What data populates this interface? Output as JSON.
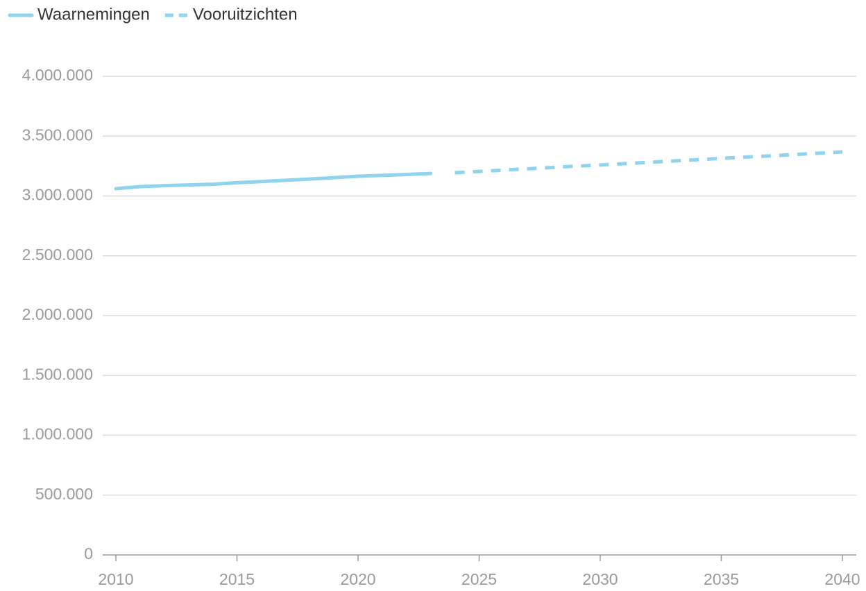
{
  "chart_data": {
    "type": "line",
    "series": [
      {
        "name": "Waarnemingen",
        "color": "#8fd3ee",
        "style": "solid",
        "x": [
          2010,
          2011,
          2012,
          2013,
          2014,
          2015,
          2016,
          2017,
          2018,
          2019,
          2020,
          2021,
          2022,
          2023
        ],
        "values": [
          3061000,
          3078000,
          3086000,
          3092000,
          3098000,
          3111000,
          3120000,
          3131000,
          3141000,
          3153000,
          3165000,
          3172000,
          3180000,
          3188000
        ]
      },
      {
        "name": "Vooruitzichten",
        "color": "#8fd3ee",
        "style": "dashed",
        "x": [
          2024,
          2025,
          2026,
          2027,
          2028,
          2029,
          2030,
          2031,
          2032,
          2033,
          2034,
          2035,
          2036,
          2037,
          2038,
          2039,
          2040
        ],
        "values": [
          3194000,
          3205000,
          3216000,
          3227000,
          3238000,
          3249000,
          3259000,
          3270000,
          3281000,
          3292000,
          3303000,
          3314000,
          3325000,
          3335000,
          3346000,
          3357000,
          3368000
        ]
      }
    ],
    "xlim": [
      2010,
      2040
    ],
    "xticks": [
      2010,
      2015,
      2020,
      2025,
      2030,
      2035,
      2040
    ],
    "ylim": [
      0,
      4000000
    ],
    "yticks": [
      0,
      {
        "value": 500000,
        "label": "500.000"
      },
      {
        "value": 1000000,
        "label": "1.000.000"
      },
      {
        "value": 1500000,
        "label": "1.500.000"
      },
      {
        "value": 2000000,
        "label": "2.000.000"
      },
      {
        "value": 2500000,
        "label": "2.500.000"
      },
      {
        "value": 3000000,
        "label": "3.000.000"
      },
      {
        "value": 3500000,
        "label": "3.500.000"
      },
      {
        "value": 4000000,
        "label": "4.000.000"
      }
    ],
    "grid": true,
    "legend": "top-left"
  }
}
